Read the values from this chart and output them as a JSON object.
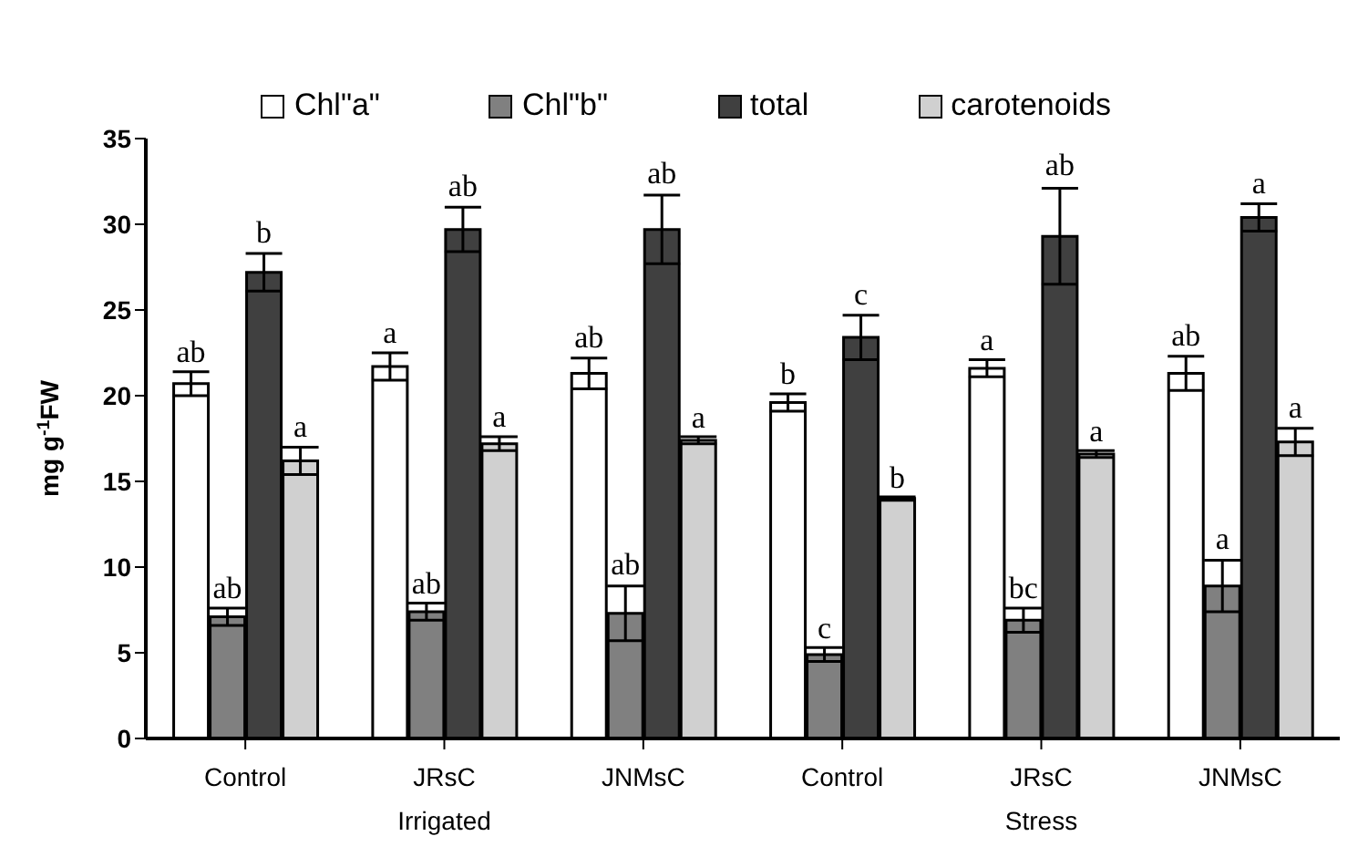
{
  "chart_data": {
    "type": "bar",
    "ylabel": "mg g$^{-1}$FW",
    "categories": [
      "Control",
      "JRsC",
      "JNMsC",
      "Control",
      "JRsC",
      "JNMsC"
    ],
    "annotations": [
      "Irrigated",
      "Stress"
    ],
    "series": [
      {
        "name": "Chl\"a\"",
        "color": "#ffffff",
        "values": [
          20.7,
          21.7,
          21.3,
          19.6,
          21.6,
          21.3
        ],
        "errors": [
          0.7,
          0.8,
          0.9,
          0.5,
          0.5,
          1.0
        ],
        "value_labels": [
          "ab",
          "a",
          "ab",
          "b",
          "a",
          "ab"
        ]
      },
      {
        "name": "Chl\"b\"",
        "color": "#808080",
        "values": [
          7.1,
          7.4,
          7.3,
          4.9,
          6.9,
          8.9
        ],
        "errors": [
          0.5,
          0.5,
          1.6,
          0.4,
          0.7,
          1.5
        ],
        "value_labels": [
          "ab",
          "ab",
          "ab",
          "c",
          "bc",
          "a"
        ]
      },
      {
        "name": "total",
        "color": "#404040",
        "values": [
          27.2,
          29.7,
          29.7,
          23.4,
          29.3,
          30.4
        ],
        "errors": [
          1.1,
          1.3,
          2.0,
          1.3,
          2.8,
          0.8
        ],
        "value_labels": [
          "b",
          "ab",
          "ab",
          "c",
          "ab",
          "a"
        ]
      },
      {
        "name": "carotenoids",
        "color": "#d0d0d0",
        "values": [
          16.2,
          17.2,
          17.4,
          14.0,
          16.6,
          17.3
        ],
        "errors": [
          0.8,
          0.4,
          0.2,
          0.1,
          0.2,
          0.8
        ],
        "value_labels": [
          "a",
          "a",
          "a",
          "b",
          "a",
          "a"
        ]
      }
    ],
    "ylim": [
      0,
      35
    ],
    "yticks": [
      0,
      5,
      10,
      15,
      20,
      25,
      30,
      35
    ],
    "grid": false,
    "legend": "top"
  }
}
